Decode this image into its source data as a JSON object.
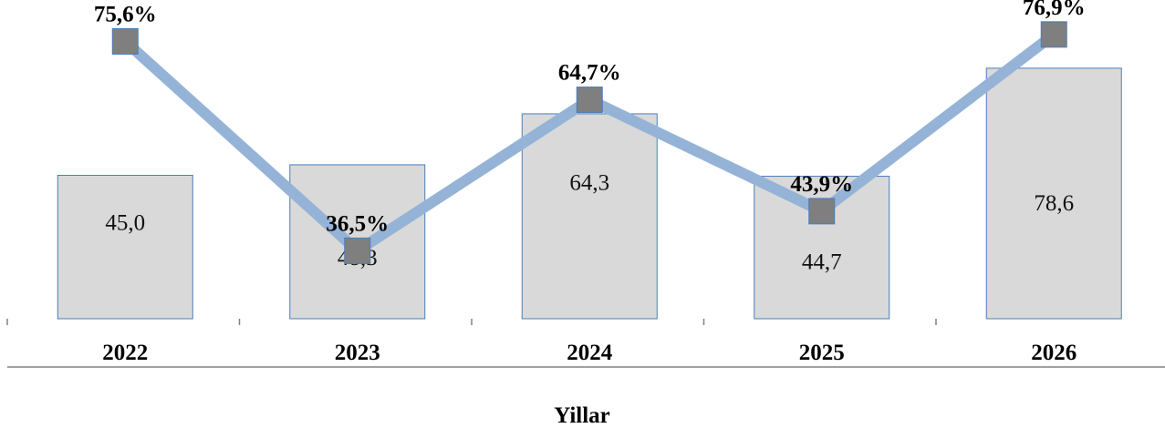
{
  "chart_data": {
    "type": "bar+line",
    "categories": [
      "2022",
      "2023",
      "2024",
      "2025",
      "2026"
    ],
    "series": [
      {
        "type": "bar",
        "values": [
          45.0,
          48.3,
          64.3,
          44.7,
          78.6
        ],
        "labels": [
          "45,0",
          "48,3",
          "64,3",
          "44,7",
          "78,6"
        ]
      },
      {
        "type": "line",
        "values": [
          75.6,
          36.5,
          64.7,
          43.9,
          76.9
        ],
        "labels": [
          "75,6%",
          "36,5%",
          "64,7%",
          "43,9%",
          "76,9%"
        ]
      }
    ],
    "xlabel": "Yillar",
    "ylabel": "",
    "title": "",
    "grid": false,
    "legend": "none",
    "colors": {
      "bar_fill": "#d9d9d9",
      "bar_stroke": "#4a7ebb",
      "line": "#95b3d7",
      "marker": "#7f7f7f"
    }
  }
}
